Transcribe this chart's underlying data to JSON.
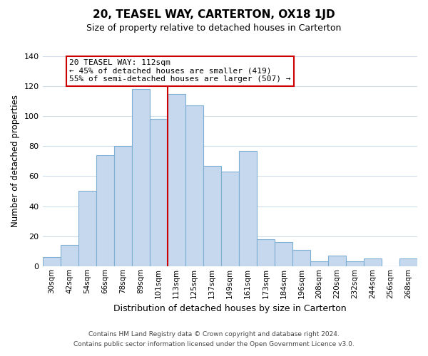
{
  "title": "20, TEASEL WAY, CARTERTON, OX18 1JD",
  "subtitle": "Size of property relative to detached houses in Carterton",
  "xlabel": "Distribution of detached houses by size in Carterton",
  "ylabel": "Number of detached properties",
  "bar_labels": [
    "30sqm",
    "42sqm",
    "54sqm",
    "66sqm",
    "78sqm",
    "89sqm",
    "101sqm",
    "113sqm",
    "125sqm",
    "137sqm",
    "149sqm",
    "161sqm",
    "173sqm",
    "184sqm",
    "196sqm",
    "208sqm",
    "220sqm",
    "232sqm",
    "244sqm",
    "256sqm",
    "268sqm"
  ],
  "bar_values": [
    6,
    14,
    50,
    74,
    80,
    118,
    98,
    115,
    107,
    67,
    63,
    77,
    18,
    16,
    11,
    3,
    7,
    3,
    5,
    0,
    5
  ],
  "bar_color": "#c5d8ed",
  "bar_edge_color": "#7dafd4",
  "highlight_line_after_index": 6,
  "highlight_color": "#cc0000",
  "annotation_text": "20 TEASEL WAY: 112sqm\n← 45% of detached houses are smaller (419)\n55% of semi-detached houses are larger (507) →",
  "annotation_box_color": "#ffffff",
  "annotation_box_edge_color": "#cc0000",
  "ylim": [
    0,
    140
  ],
  "yticks": [
    0,
    20,
    40,
    60,
    80,
    100,
    120,
    140
  ],
  "footer_line1": "Contains HM Land Registry data © Crown copyright and database right 2024.",
  "footer_line2": "Contains public sector information licensed under the Open Government Licence v3.0.",
  "background_color": "#ffffff",
  "grid_color": "#d0dce8"
}
